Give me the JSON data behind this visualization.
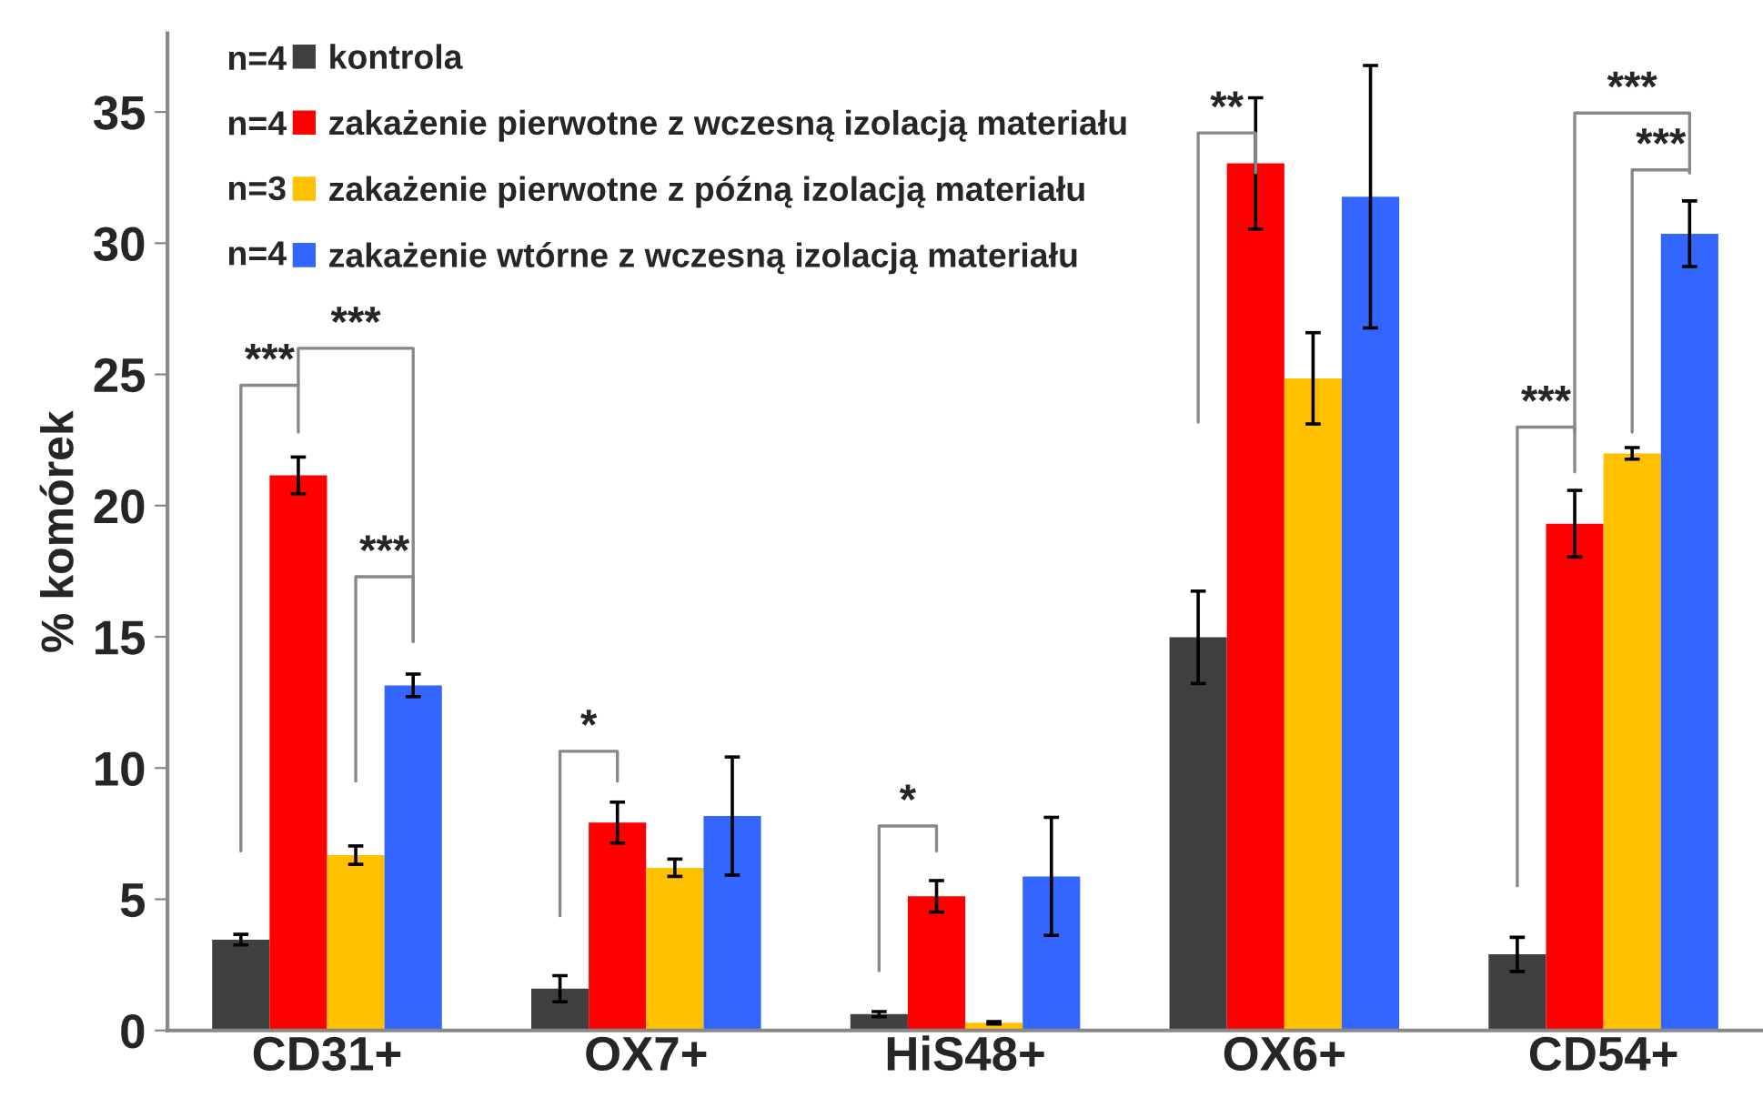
{
  "chart_data": {
    "type": "bar",
    "ylabel": "% komórek",
    "categories": [
      "CD31+",
      "OX7+",
      "HiS48+",
      "OX6+",
      "CD54+"
    ],
    "series": [
      {
        "name": "kontrola",
        "color": "#404040",
        "values": [
          3.46,
          1.59,
          0.62,
          14.98,
          2.9
        ],
        "errors": [
          0.2,
          0.5,
          0.1,
          1.76,
          0.65
        ]
      },
      {
        "name": "zakażenie pierwotne z wczesną izolacją materiału",
        "color": "#ff0000",
        "values": [
          21.15,
          7.92,
          5.11,
          33.04,
          19.31
        ],
        "errors": [
          0.7,
          0.78,
          0.6,
          2.5,
          1.27
        ]
      },
      {
        "name": "zakażenie pierwotne z późną izolacją materiału",
        "color": "#ffc000",
        "values": [
          6.68,
          6.2,
          0.29,
          24.85,
          21.99
        ],
        "errors": [
          0.35,
          0.33,
          0.05,
          1.74,
          0.22
        ]
      },
      {
        "name": "zakażenie wtórne z wczesną izolacją materiału",
        "color": "#3366ff",
        "values": [
          13.15,
          8.17,
          5.87,
          31.77,
          30.36
        ],
        "errors": [
          0.43,
          2.25,
          2.25,
          5.0,
          1.25
        ]
      }
    ],
    "annotations": [
      "n=4",
      "n=4",
      "n=3",
      "n=4",
      "***",
      "***",
      "***",
      "*",
      "*",
      "**",
      "***",
      "***",
      "***"
    ],
    "ylim": [
      0,
      38
    ],
    "yticks": [
      0,
      5,
      10,
      15,
      20,
      25,
      30,
      35
    ],
    "grid": false,
    "legend": "top left"
  }
}
